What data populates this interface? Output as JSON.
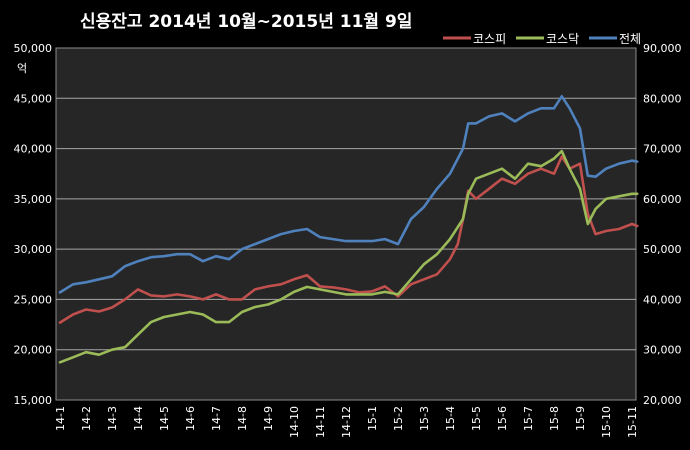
{
  "chart_data": {
    "type": "line",
    "title": "신용잔고  2014년 10월~2015년 11월 9일",
    "ylabel": "억",
    "y_left": {
      "min": 15000,
      "max": 50000,
      "ticks": [
        "15,000",
        "20,000",
        "25,000",
        "30,000",
        "35,000",
        "40,000",
        "45,000",
        "50,000"
      ],
      "step": 5000
    },
    "y_right": {
      "min": 20000,
      "max": 90000,
      "ticks": [
        "20,000",
        "30,000",
        "40,000",
        "50,000",
        "60,000",
        "70,000",
        "80,000",
        "90,000"
      ],
      "step": 10000
    },
    "x_labels": [
      "14-1",
      "14-2",
      "14-3",
      "14-4",
      "14-5",
      "14-6",
      "14-7",
      "14-8",
      "14-9",
      "14-10",
      "14-11",
      "14-12",
      "15-1",
      "15-2",
      "15-3",
      "15-4",
      "15-5",
      "15-6",
      "15-7",
      "15-8",
      "15-9",
      "15-10",
      "15-11"
    ],
    "grid": true,
    "legend_position": "top-right",
    "background": "#262626",
    "series": [
      {
        "name": "코스피",
        "axis": "left",
        "color": "#c0504d",
        "x": [
          0,
          0.5,
          1,
          1.5,
          2,
          2.5,
          3,
          3.5,
          4,
          4.5,
          5,
          5.5,
          6,
          6.5,
          7,
          7.5,
          8,
          8.5,
          9,
          9.5,
          10,
          10.5,
          11,
          11.5,
          12,
          12.5,
          13,
          13.5,
          14,
          14.5,
          15,
          15.3,
          15.5,
          15.7,
          16,
          16.5,
          17,
          17.5,
          18,
          18.5,
          19,
          19.3,
          19.6,
          20,
          20.3,
          20.6,
          21,
          21.5,
          22,
          22.2
        ],
        "y": [
          22700,
          23500,
          24000,
          23800,
          24200,
          25000,
          26000,
          25400,
          25300,
          25500,
          25300,
          25000,
          25500,
          25000,
          25000,
          26000,
          26300,
          26500,
          27000,
          27400,
          26300,
          26200,
          26000,
          25700,
          25800,
          26300,
          25300,
          26500,
          27000,
          27500,
          29000,
          30500,
          33000,
          35800,
          35000,
          36000,
          37000,
          36500,
          37500,
          38000,
          37500,
          39200,
          38000,
          38500,
          33500,
          31500,
          31800,
          32000,
          32500,
          32300
        ]
      },
      {
        "name": "코스닥",
        "axis": "right",
        "color": "#9bbb59",
        "x": [
          0,
          0.5,
          1,
          1.5,
          2,
          2.5,
          3,
          3.5,
          4,
          4.5,
          5,
          5.5,
          6,
          6.5,
          7,
          7.5,
          8,
          8.5,
          9,
          9.5,
          10,
          10.5,
          11,
          11.5,
          12,
          12.5,
          13,
          13.5,
          14,
          14.5,
          15,
          15.5,
          15.7,
          16,
          16.5,
          17,
          17.5,
          18,
          18.5,
          19,
          19.3,
          19.6,
          20,
          20.3,
          20.6,
          21,
          21.5,
          22,
          22.2
        ],
        "y": [
          27500,
          28500,
          29500,
          29000,
          30000,
          30500,
          33000,
          35500,
          36500,
          37000,
          37500,
          37000,
          35500,
          35500,
          37500,
          38500,
          39000,
          40000,
          41500,
          42500,
          42000,
          41500,
          41000,
          41000,
          41000,
          41500,
          41000,
          44000,
          47000,
          49000,
          52000,
          56000,
          61000,
          64000,
          65000,
          66000,
          64000,
          67000,
          66500,
          68000,
          69500,
          66000,
          62000,
          55000,
          58000,
          60000,
          60500,
          61000,
          61000
        ]
      },
      {
        "name": "전체",
        "axis": "left",
        "color": "#4f81bd",
        "x": [
          0,
          0.5,
          1,
          1.5,
          2,
          2.5,
          3,
          3.5,
          4,
          4.5,
          5,
          5.5,
          6,
          6.5,
          7,
          7.5,
          8,
          8.5,
          9,
          9.5,
          10,
          10.5,
          11,
          11.5,
          12,
          12.5,
          13,
          13.5,
          14,
          14.5,
          15,
          15.5,
          15.7,
          16,
          16.5,
          17,
          17.5,
          18,
          18.5,
          19,
          19.3,
          19.6,
          20,
          20.3,
          20.6,
          21,
          21.5,
          22,
          22.2
        ],
        "y": [
          25700,
          26500,
          26700,
          27000,
          27300,
          28300,
          28800,
          29200,
          29300,
          29500,
          29500,
          28800,
          29300,
          29000,
          30000,
          30500,
          31000,
          31500,
          31800,
          32000,
          31200,
          31000,
          30800,
          30800,
          30800,
          31000,
          30500,
          33000,
          34200,
          36000,
          37500,
          40000,
          42500,
          42500,
          43200,
          43500,
          42700,
          43500,
          44000,
          44000,
          45200,
          44000,
          42000,
          37300,
          37200,
          38000,
          38500,
          38800,
          38700
        ]
      }
    ]
  }
}
